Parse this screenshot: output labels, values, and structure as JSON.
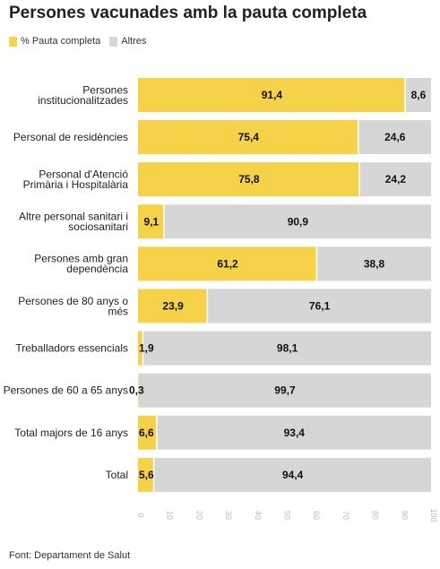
{
  "title": "Persones vacunades amb la pauta completa",
  "source": "Font: Departament de Salut",
  "colors": {
    "completa": "#f5d247",
    "altres": "#d6d6d6",
    "text": "#222222",
    "tick": "#bbbbbb"
  },
  "legend": [
    {
      "name": "% Pauta completa",
      "color": "#f5d247"
    },
    {
      "name": "Altres",
      "color": "#d6d6d6"
    }
  ],
  "chart_data": {
    "type": "bar",
    "orientation": "horizontal",
    "stacked": true,
    "categories": [
      [
        "Persones",
        "institucionalitzades"
      ],
      [
        "Personal de residències"
      ],
      [
        "Personal d'Atenció",
        "Primària i Hospitalària"
      ],
      [
        "Altre personal sanitari i",
        "sociosanitari"
      ],
      [
        "Persones amb gran",
        "dependència"
      ],
      [
        "Persones de 80 anys o",
        "més"
      ],
      [
        "Treballadors essencials"
      ],
      [
        "Persones de 60 a 65 anys"
      ],
      [
        "Total majors de 16 anys"
      ],
      [
        "Total"
      ]
    ],
    "series": [
      {
        "name": "% Pauta completa",
        "values": [
          91.4,
          75.4,
          75.8,
          9.1,
          61.2,
          23.9,
          1.9,
          0.3,
          6.6,
          5.6
        ]
      },
      {
        "name": "Altres",
        "values": [
          8.6,
          24.6,
          24.2,
          90.9,
          38.8,
          76.1,
          98.1,
          99.7,
          93.4,
          94.4
        ]
      }
    ],
    "value_labels": [
      [
        "91,4",
        "75,4",
        "75,8",
        "9,1",
        "61,2",
        "23,9",
        "1,9",
        "0,3",
        "6,6",
        "5,6"
      ],
      [
        "8,6",
        "24,6",
        "24,2",
        "90,9",
        "38,8",
        "76,1",
        "98,1",
        "99,7",
        "93,4",
        "94,4"
      ]
    ],
    "xlim": [
      0,
      100
    ],
    "xticks": [
      0,
      10,
      20,
      30,
      40,
      50,
      60,
      70,
      80,
      90,
      100
    ],
    "legend_position": "top-left",
    "grid": false
  }
}
